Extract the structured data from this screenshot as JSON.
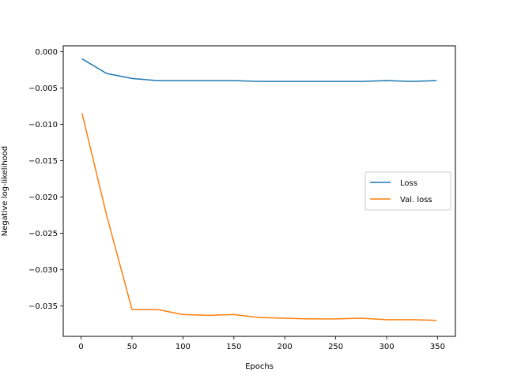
{
  "chart_data": {
    "type": "line",
    "xlabel": "Epochs",
    "ylabel": "Negative log-likelihood",
    "xlim": [
      -17.5,
      367.5
    ],
    "ylim": [
      -0.0392,
      0.0008
    ],
    "xticks": [
      0,
      50,
      100,
      150,
      200,
      250,
      300,
      350
    ],
    "xtick_labels": [
      "0",
      "50",
      "100",
      "150",
      "200",
      "250",
      "300",
      "350"
    ],
    "yticks": [
      0.0,
      -0.005,
      -0.01,
      -0.015,
      -0.02,
      -0.025,
      -0.03,
      -0.035
    ],
    "ytick_labels": [
      "0.000",
      "−0.005",
      "−0.010",
      "−0.015",
      "−0.020",
      "−0.025",
      "−0.030",
      "−0.035"
    ],
    "grid": false,
    "legend_position": "center-right",
    "x": [
      1,
      25,
      50,
      75,
      100,
      125,
      150,
      175,
      200,
      225,
      250,
      275,
      300,
      325,
      349
    ],
    "series": [
      {
        "name": "Loss",
        "color": "#1f77b4",
        "values": [
          -0.001,
          -0.003,
          -0.0037,
          -0.004,
          -0.004,
          -0.004,
          -0.004,
          -0.0041,
          -0.0041,
          -0.0041,
          -0.0041,
          -0.0041,
          -0.004,
          -0.0041,
          -0.004
        ]
      },
      {
        "name": "Val. loss",
        "color": "#ff7f0e",
        "values": [
          -0.0085,
          -0.0225,
          -0.0355,
          -0.0355,
          -0.0362,
          -0.0363,
          -0.0362,
          -0.0366,
          -0.0367,
          -0.0368,
          -0.0368,
          -0.0367,
          -0.0369,
          -0.0369,
          -0.037
        ]
      }
    ]
  }
}
